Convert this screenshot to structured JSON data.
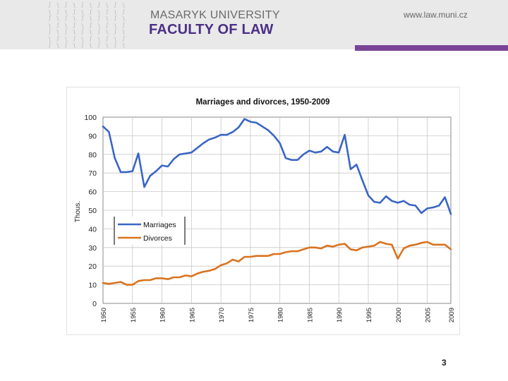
{
  "header": {
    "university": "MASARYK UNIVERSITY",
    "faculty": "FACULTY OF LAW",
    "url": "www.law.muni.cz",
    "pattern_glyphs": "ʃ ʅ ʃ ʅ ʃ ʅ ʃ ʅ ʃ ʅ\nʅ ʃ ʅ ʃ ʅ ʃ ʅ ʃ ʅ ʃ\nʃ ʅ ʃ ʅ ʃ ʅ ʃ ʅ ʃ ʅ\nʅ ʃ ʅ ʃ ʅ ʃ ʅ ʃ ʅ ʃ\nʃ ʅ ʃ ʅ ʃ ʅ ʃ ʅ ʃ ʅ\nʅ ʃ ʅ ʃ ʅ ʃ ʅ ʃ ʅ ʃ\nʃ ʅ ʃ ʅ ʃ ʅ ʃ ʅ ʃ ʅ"
  },
  "colors": {
    "header_bg": "#e9e9e9",
    "brand_purple": "#4b2f86",
    "accent_bar": "#7b4397",
    "marriages": "#3a66c4",
    "divorces": "#d9731f"
  },
  "page_number": "3",
  "chart_data": {
    "type": "line",
    "title": "Marriages and divorces, 1950-2009",
    "ylabel": "Thous.",
    "xlabel": "",
    "ylim": [
      0,
      100
    ],
    "xlim": [
      1950,
      2009
    ],
    "yticks": [
      0,
      10,
      20,
      30,
      40,
      50,
      60,
      70,
      80,
      90,
      100
    ],
    "xticks": [
      1950,
      1955,
      1960,
      1965,
      1970,
      1975,
      1980,
      1985,
      1990,
      1995,
      2000,
      2005,
      2009
    ],
    "grid": true,
    "legend": "center-left",
    "x": [
      1950,
      1951,
      1952,
      1953,
      1954,
      1955,
      1956,
      1957,
      1958,
      1959,
      1960,
      1961,
      1962,
      1963,
      1964,
      1965,
      1966,
      1967,
      1968,
      1969,
      1970,
      1971,
      1972,
      1973,
      1974,
      1975,
      1976,
      1977,
      1978,
      1979,
      1980,
      1981,
      1982,
      1983,
      1984,
      1985,
      1986,
      1987,
      1988,
      1989,
      1990,
      1991,
      1992,
      1993,
      1994,
      1995,
      1996,
      1997,
      1998,
      1999,
      2000,
      2001,
      2002,
      2003,
      2004,
      2005,
      2006,
      2007,
      2008,
      2009
    ],
    "series": [
      {
        "name": "Marriages",
        "color": "#3a66c4",
        "values": [
          95,
          92,
          78,
          70.5,
          70.5,
          71,
          80.5,
          62.5,
          68.5,
          71,
          74,
          73.5,
          77.5,
          80,
          80.5,
          81,
          83.5,
          86,
          88,
          89,
          90.5,
          90.5,
          92,
          94.5,
          99,
          97.5,
          97,
          95,
          93,
          90,
          86,
          78,
          77,
          77,
          80,
          82,
          81,
          81.5,
          84,
          81.5,
          81,
          90.5,
          72,
          74.5,
          66,
          58,
          54.5,
          54,
          57.5,
          55,
          54,
          55,
          53,
          52.5,
          48.5,
          51,
          51.5,
          52.5,
          57,
          48
        ]
      },
      {
        "name": "Divorces",
        "color": "#d9731f",
        "values": [
          11,
          10.5,
          11,
          11.5,
          10,
          10,
          12,
          12.5,
          12.5,
          13.5,
          13.5,
          13,
          14,
          14,
          15,
          14.5,
          16,
          17,
          17.5,
          18.5,
          20.5,
          21.5,
          23.5,
          22.5,
          25,
          25,
          25.5,
          25.5,
          25.5,
          26.5,
          26.5,
          27.5,
          28,
          28,
          29,
          30,
          30,
          29.5,
          31,
          30.5,
          31.5,
          32,
          29,
          28.5,
          30,
          30.5,
          31,
          33,
          32,
          31.5,
          24,
          29.5,
          31,
          31.5,
          32.5,
          33,
          31.5,
          31.5,
          31.5,
          29
        ]
      }
    ]
  }
}
